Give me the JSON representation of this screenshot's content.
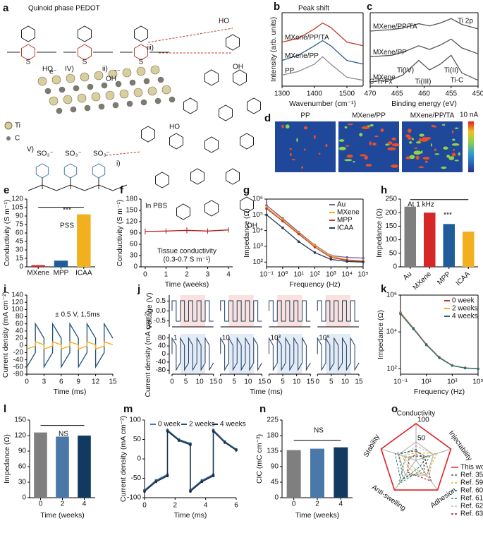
{
  "diagram": {
    "panel": "a",
    "title": "Quinoid phase PEDOT",
    "ti": "Ti",
    "c": "C",
    "pss": "PSS",
    "i": "i)",
    "ii": "ii)",
    "iii": "iii)",
    "iv": "IV)",
    "v": "V)",
    "sulfonate": "SO₃⁻",
    "oh": "OH",
    "ho": "HO",
    "electron": "e⁻",
    "s": "S"
  },
  "maps": {
    "panel": "d",
    "titles": [
      "PP",
      "MXene/PP",
      "MXene/PP/TA"
    ],
    "colorbar": "10 nA"
  },
  "chart_data": [
    {
      "panel": "b",
      "type": "line",
      "xlabel": "Wavenumber (cm⁻¹)",
      "ylabel": "Intensity (arb. units)",
      "xlim": [
        1300,
        1550
      ],
      "xticks": [
        1300,
        1400,
        1500
      ],
      "ylim": [
        0,
        10
      ],
      "legend": "inline",
      "annotations": [
        "Peak shift"
      ],
      "x": [
        1300,
        1350,
        1400,
        1425,
        1450,
        1500,
        1550
      ],
      "series": [
        {
          "name": "PP",
          "color": "#8c8c8c",
          "values": [
            1.5,
            2,
            3,
            4,
            3,
            1.2,
            0.8
          ]
        },
        {
          "name": "MXene/PP",
          "color": "#2f5f8f",
          "values": [
            3.5,
            4.2,
            5.5,
            6.2,
            5.5,
            3.5,
            3
          ]
        },
        {
          "name": "MXene/PP/TA",
          "color": "#c0392b",
          "values": [
            6,
            6.5,
            7.8,
            8.6,
            8,
            6,
            5.5
          ]
        }
      ]
    },
    {
      "panel": "c",
      "type": "line",
      "xlabel": "Binding energy (eV)",
      "xlim": [
        470,
        450
      ],
      "xticks": [
        470,
        465,
        460,
        455,
        450
      ],
      "ylim": [
        0,
        10
      ],
      "legend": "inline",
      "annotations": [
        "Ti 2p",
        "Ti(IV)",
        "Ti(II)",
        "Ti-C",
        "C-Ti-Fx",
        "Ti(III)"
      ],
      "x": [
        470,
        466,
        464,
        461,
        459,
        457,
        455,
        453,
        450
      ],
      "series": [
        {
          "name": "MXene/PP/TA",
          "color": "#555555",
          "values": [
            7.5,
            7.7,
            7.9,
            8.5,
            8.2,
            8.6,
            9.2,
            8.4,
            7.8
          ]
        },
        {
          "name": "MXene/PP",
          "color": "#555555",
          "values": [
            4,
            4.2,
            4.6,
            5.5,
            5,
            5.6,
            6.4,
            5.2,
            4.4
          ]
        },
        {
          "name": "MXene",
          "color": "#555555",
          "values": [
            0.6,
            0.9,
            1.5,
            3.5,
            2.2,
            3,
            4.2,
            1.8,
            0.8
          ]
        }
      ]
    },
    {
      "panel": "e",
      "type": "bar",
      "ylabel": "Conductivity (S m⁻¹)",
      "categories": [
        "MXene",
        "MPP",
        "ICAA"
      ],
      "values": [
        3,
        11,
        93
      ],
      "colors": [
        "#d62728",
        "#1f5c99",
        "#f2b01e"
      ],
      "ylim": [
        0,
        120
      ],
      "yticks": [
        0,
        15,
        30,
        45,
        60,
        75,
        90,
        105,
        120
      ],
      "annotations": [
        "***"
      ]
    },
    {
      "panel": "f",
      "type": "line",
      "xlabel": "Time (weeks)",
      "ylabel": "Conductivity (S m⁻¹)",
      "xlim": [
        -0.2,
        4.2
      ],
      "xticks": [
        0,
        1,
        2,
        3,
        4
      ],
      "ylim": [
        0,
        180
      ],
      "yticks": [
        0,
        30,
        60,
        90,
        120,
        150,
        180
      ],
      "x": [
        0,
        1,
        2,
        3,
        4
      ],
      "values": [
        94,
        95,
        97,
        95,
        98
      ],
      "errors": [
        8,
        7,
        8,
        7,
        7
      ],
      "color": "#b22222",
      "annotations": [
        "In PBS",
        "Tissue conductivity",
        "(0.3-0.7 S m⁻¹)"
      ]
    },
    {
      "panel": "g",
      "type": "line",
      "xlabel": "Frequency (Hz)",
      "ylabel": "Impedance (Ω)",
      "xlog": true,
      "ylog": true,
      "markers": true,
      "legend": "upper right",
      "xlim": [
        0.1,
        100000
      ],
      "ylim": [
        50,
        1000000
      ],
      "xticks": [
        {
          "value": 0.1,
          "label": "10⁻¹"
        },
        {
          "value": 1,
          "label": "10⁰"
        },
        {
          "value": 10,
          "label": "10¹"
        },
        {
          "value": 100,
          "label": "10²"
        },
        {
          "value": 1000,
          "label": "10³"
        },
        {
          "value": 10000,
          "label": "10⁴"
        },
        {
          "value": 100000,
          "label": "10⁵"
        }
      ],
      "yticks": [
        {
          "value": 100,
          "label": "10²"
        },
        {
          "value": 1000,
          "label": "10³"
        },
        {
          "value": 10000,
          "label": "10⁴"
        },
        {
          "value": 100000,
          "label": "10⁵"
        },
        {
          "value": 1000000,
          "label": "10⁶"
        }
      ],
      "x": [
        0.1,
        1,
        10,
        100,
        1000,
        10000,
        100000
      ],
      "series": [
        {
          "name": "Au",
          "color": "#7b5ea7",
          "values": [
            400000,
            60000,
            8000,
            1200,
            260,
            200,
            180
          ]
        },
        {
          "name": "MXene",
          "color": "#f2b01e",
          "values": [
            300000,
            50000,
            7000,
            1100,
            240,
            140,
            120
          ]
        },
        {
          "name": "MPP",
          "color": "#c0392b",
          "values": [
            250000,
            40000,
            6000,
            900,
            200,
            130,
            110
          ]
        },
        {
          "name": "ICAA",
          "color": "#1f3a60",
          "values": [
            100000,
            15000,
            2000,
            400,
            150,
            110,
            100
          ]
        }
      ]
    },
    {
      "panel": "h",
      "type": "bar",
      "ylabel": "Impedance (Ω)",
      "categories": [
        "Au",
        "MXene",
        "MPP",
        "ICAA"
      ],
      "values": [
        222,
        200,
        158,
        130
      ],
      "colors": [
        "#7f7f7f",
        "#d62728",
        "#1f5c99",
        "#f2b01e"
      ],
      "ylim": [
        0,
        250
      ],
      "yticks": [
        0,
        50,
        100,
        150,
        200,
        250
      ],
      "annotations": [
        "At 1 kHz",
        "***"
      ]
    },
    {
      "panel": "i",
      "type": "line",
      "xlabel": "Time (ms)",
      "ylabel": "Current density (mA cm⁻²)",
      "xlim": [
        0,
        15
      ],
      "xticks": [
        0,
        3,
        6,
        9,
        12,
        15
      ],
      "ylim": [
        -80,
        140
      ],
      "yticks": [
        -80,
        -60,
        -40,
        -20,
        0,
        20,
        40,
        60,
        80,
        100,
        120,
        140
      ],
      "annotations": [
        "± 0.5 V, 1.5ms"
      ],
      "x": [
        0,
        1.5,
        1.5,
        3,
        3,
        4.5,
        4.5,
        6,
        6,
        7.5,
        7.5,
        9,
        9,
        10.5,
        10.5,
        12,
        12,
        13.5,
        13.5,
        15
      ],
      "series": [
        {
          "color": "#1f4e79",
          "values": [
            -60,
            -20,
            60,
            20,
            -60,
            -20,
            60,
            20,
            -60,
            -20,
            60,
            20,
            -60,
            -20,
            60,
            20,
            -60,
            -20,
            60,
            20
          ]
        },
        {
          "color": "#f2a81e",
          "values": [
            -10,
            -2,
            10,
            2,
            -10,
            -2,
            10,
            2,
            -10,
            -2,
            10,
            2,
            -10,
            -2,
            10,
            2,
            -10,
            -2,
            10,
            2
          ]
        }
      ]
    },
    {
      "panel": "j",
      "type": "pulse",
      "xlabel": "Time (ms)",
      "ylabel": "Current density (mA cm⁻²)",
      "y2label": "Voltage (V)",
      "xlim": [
        0,
        15
      ],
      "xticks": [
        0,
        5,
        10,
        15
      ],
      "ylim": [
        -100,
        100
      ],
      "yticks": [
        80,
        40,
        0,
        -40,
        -80
      ],
      "y2lim": [
        -0.8,
        0.8
      ],
      "y2ticks": [
        -0.5,
        {
          "value": 0,
          "label": "0.0"
        },
        0.5
      ],
      "segments": [
        "1",
        "10",
        "10³",
        "10⁵"
      ]
    },
    {
      "panel": "k",
      "type": "line",
      "xlabel": "Frequency (Hz)",
      "ylabel": "Impedance (Ω)",
      "xlog": true,
      "ylog": true,
      "markers": true,
      "legend": "upper right",
      "xlim": [
        0.1,
        100000
      ],
      "ylim": [
        50,
        1000000
      ],
      "xticks": [
        {
          "value": 0.1,
          "label": "10⁻¹"
        },
        {
          "value": 10,
          "label": "10¹"
        },
        {
          "value": 1000,
          "label": "10³"
        },
        {
          "value": 100000,
          "label": "10⁵"
        }
      ],
      "yticks": [
        {
          "value": 100,
          "label": "10²"
        },
        {
          "value": 10000,
          "label": "10⁴"
        },
        {
          "value": 1000000,
          "label": "10⁶"
        }
      ],
      "x": [
        0.1,
        1,
        10,
        100,
        1000,
        10000,
        100000
      ],
      "series": [
        {
          "name": "0 week",
          "color": "#c0392b",
          "values": [
            110000,
            16000,
            2100,
            420,
            150,
            110,
            100
          ]
        },
        {
          "name": "2 weeks",
          "color": "#f2b01e",
          "values": [
            100000,
            15000,
            2000,
            400,
            148,
            108,
            98
          ]
        },
        {
          "name": "4 weeks",
          "color": "#1f6f78",
          "values": [
            95000,
            14500,
            1950,
            390,
            146,
            107,
            97
          ]
        }
      ]
    },
    {
      "panel": "l",
      "type": "bar",
      "xlabel": "Time (weeks)",
      "ylabel": "Impedance (Ω)",
      "categories": [
        "0",
        "2",
        "4"
      ],
      "values": [
        126,
        118,
        120
      ],
      "colors": [
        "#7f7f7f",
        "#4a78a8",
        "#123a60"
      ],
      "ylim": [
        0,
        150
      ],
      "yticks": [
        0,
        30,
        60,
        90,
        120,
        150
      ],
      "annotations": [
        "NS"
      ]
    },
    {
      "panel": "m",
      "type": "line",
      "xlabel": "Time (ms)",
      "ylabel": "Current density (mA cm⁻²)",
      "markers": true,
      "legend": "top",
      "xlim": [
        0,
        6
      ],
      "xticks": [
        0,
        2,
        4,
        6
      ],
      "ylim": [
        -100,
        100
      ],
      "yticks": [
        -100,
        -50,
        0,
        50,
        100
      ],
      "x": [
        0,
        0.75,
        1.5,
        1.5,
        2.25,
        3,
        3,
        3.75,
        4.5,
        4.5,
        5.25,
        6
      ],
      "series": [
        {
          "name": "0 week",
          "color": "#4a78a8",
          "values": [
            -80,
            -55,
            -40,
            75,
            50,
            40,
            -80,
            -55,
            -40,
            75,
            45,
            25
          ]
        },
        {
          "name": "2 weeks",
          "color": "#2b4f75",
          "values": [
            -82,
            -57,
            -42,
            73,
            49,
            38,
            -82,
            -57,
            -42,
            73,
            44,
            24
          ]
        },
        {
          "name": "4 weeks",
          "color": "#1a2f4a",
          "values": [
            -84,
            -59,
            -44,
            71,
            47,
            36,
            -84,
            -59,
            -44,
            71,
            42,
            22
          ]
        }
      ]
    },
    {
      "panel": "n",
      "type": "bar",
      "xlabel": "Time (weeks)",
      "ylabel": "CIC (mC cm⁻²)",
      "categories": [
        "0",
        "2",
        "4"
      ],
      "values": [
        138,
        142,
        146
      ],
      "colors": [
        "#7f7f7f",
        "#4a78a8",
        "#123a60"
      ],
      "ylim": [
        0,
        225
      ],
      "yticks": [
        0,
        45,
        90,
        135,
        180,
        225
      ],
      "annotations": [
        "NS"
      ]
    },
    {
      "panel": "o",
      "type": "radar",
      "axes": [
        "Conductivity",
        "Injectability",
        "Adhesion",
        "Anti-swelling",
        "Stability"
      ],
      "rlim": [
        0,
        100
      ],
      "rticks": [
        50,
        100
      ],
      "series": [
        {
          "name": "This work",
          "color": "#e02020",
          "values": [
            100,
            100,
            100,
            100,
            100
          ]
        },
        {
          "name": "Ref. 35",
          "color": "#555555",
          "values": [
            30,
            20,
            40,
            60,
            50
          ]
        },
        {
          "name": "Ref. 59",
          "color": "#f2b01e",
          "values": [
            20,
            60,
            50,
            30,
            40
          ]
        },
        {
          "name": "Ref. 60",
          "color": "#1f6f78",
          "values": [
            25,
            30,
            20,
            70,
            60
          ]
        },
        {
          "name": "Ref. 61",
          "color": "#2e8b57",
          "values": [
            10,
            40,
            30,
            80,
            30
          ]
        },
        {
          "name": "Ref. 62",
          "color": "#bbbbbb",
          "values": [
            40,
            50,
            60,
            20,
            35
          ]
        },
        {
          "name": "Ref. 63",
          "color": "#8b1a1a",
          "values": [
            15,
            25,
            70,
            40,
            20
          ]
        }
      ]
    }
  ]
}
